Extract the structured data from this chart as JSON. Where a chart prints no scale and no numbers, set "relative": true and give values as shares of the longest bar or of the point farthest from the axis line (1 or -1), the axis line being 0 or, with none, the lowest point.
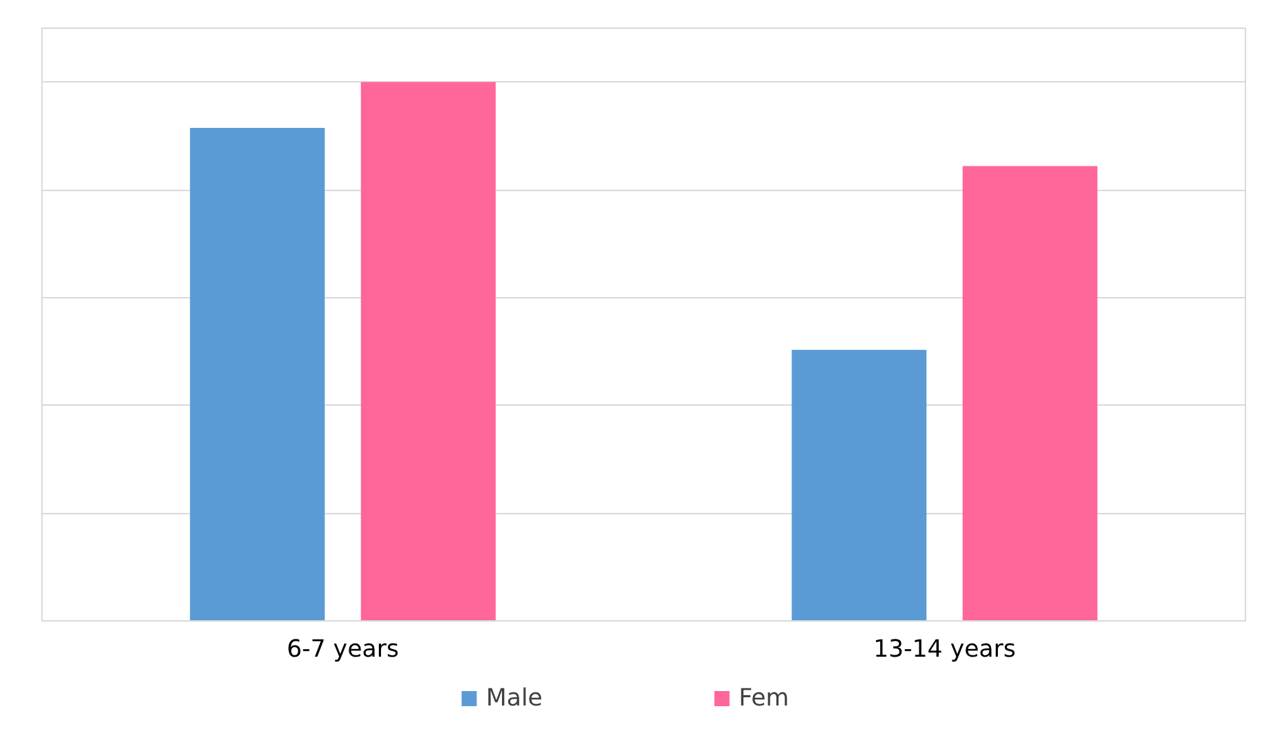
{
  "chart_data": {
    "type": "bar",
    "relative": true,
    "categories": [
      "6-7 years",
      "13-14 years"
    ],
    "series": [
      {
        "name": "Male",
        "color": "#5b9bd5",
        "values": [
          0.915,
          0.503
        ]
      },
      {
        "name": "Fem",
        "color": "#ff6699",
        "values": [
          1,
          0.844
        ]
      }
    ],
    "grid": "y",
    "legend": "bottom"
  }
}
